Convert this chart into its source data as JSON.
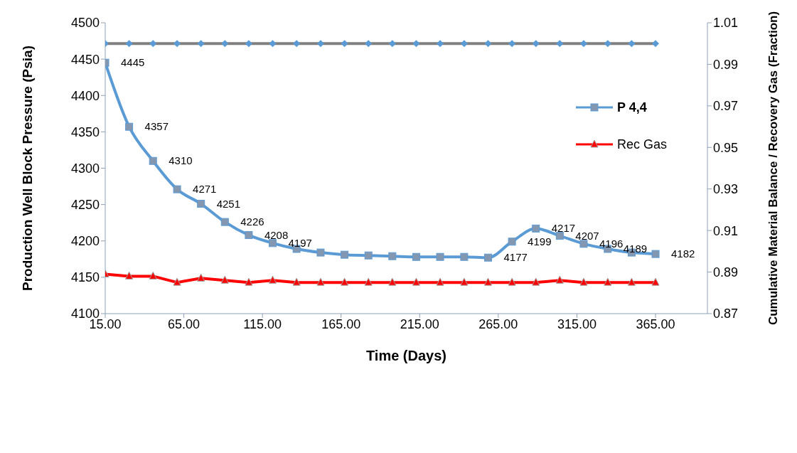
{
  "chart_data": {
    "type": "line",
    "xlabel": "Time  (Days)",
    "ylabel": "Production Well Block Pressure (Psia)",
    "y2label": "Cumulative Material Balance / Recovery Gas (Fraction)",
    "x": [
      15,
      30.2,
      45.4,
      60.7,
      75.9,
      91.1,
      106.3,
      121.5,
      136.7,
      152,
      167.2,
      182.4,
      197.6,
      212.8,
      228,
      243.3,
      258.5,
      273.7,
      288.9,
      304.1,
      319.3,
      334.6,
      349.8,
      365
    ],
    "xlim": [
      15,
      398
    ],
    "xticks": [
      {
        "value": 15,
        "label": "15.00"
      },
      {
        "value": 65,
        "label": "65.00"
      },
      {
        "value": 115,
        "label": "115.00"
      },
      {
        "value": 165,
        "label": "165.00"
      },
      {
        "value": 215,
        "label": "215.00"
      },
      {
        "value": 265,
        "label": "265.00"
      },
      {
        "value": 315,
        "label": "315.00"
      },
      {
        "value": 365,
        "label": "365.00"
      }
    ],
    "ylim": [
      4100,
      4500
    ],
    "yticks": [
      4100,
      4150,
      4200,
      4250,
      4300,
      4350,
      4400,
      4450,
      4500
    ],
    "y2lim": [
      0.87,
      1.01
    ],
    "y2ticks": [
      0.87,
      0.89,
      0.91,
      0.93,
      0.95,
      0.97,
      0.99,
      1.01
    ],
    "grid": false,
    "legend": "right",
    "series": [
      {
        "name": "P 4,4",
        "color": "#5b9bd5",
        "marker": "square",
        "values": [
          4445,
          4357,
          4310,
          4271,
          4251,
          4226,
          4208,
          4197,
          4189,
          4184,
          4181,
          4180,
          4179,
          4178,
          4178,
          4178,
          4177,
          4199,
          4217,
          4207,
          4196,
          4189,
          4184,
          4182
        ],
        "value_labels": [
          "4445",
          "4357",
          "4310",
          "4271",
          "4251",
          "4226",
          "4208",
          "4197",
          null,
          null,
          null,
          null,
          null,
          null,
          null,
          null,
          "4177",
          "4199",
          "4217",
          "4207",
          "4196",
          "4189",
          null,
          "4182"
        ]
      },
      {
        "name": "Rec Gas",
        "color": "#ff0000",
        "marker": "triangle",
        "axis": "y2",
        "values": [
          0.889,
          0.888,
          0.888,
          0.885,
          0.887,
          0.886,
          0.885,
          0.886,
          0.885,
          0.885,
          0.885,
          0.885,
          0.885,
          0.885,
          0.885,
          0.885,
          0.885,
          0.885,
          0.885,
          0.886,
          0.885,
          0.885,
          0.885,
          0.885
        ]
      },
      {
        "color": "#808080",
        "marker": "diamond",
        "axis": "y2",
        "values": [
          1,
          1,
          1,
          1,
          1,
          1,
          1,
          1,
          1,
          1,
          1,
          1,
          1,
          1,
          1,
          1,
          1,
          1,
          1,
          1,
          1,
          1,
          1,
          1
        ]
      }
    ]
  }
}
